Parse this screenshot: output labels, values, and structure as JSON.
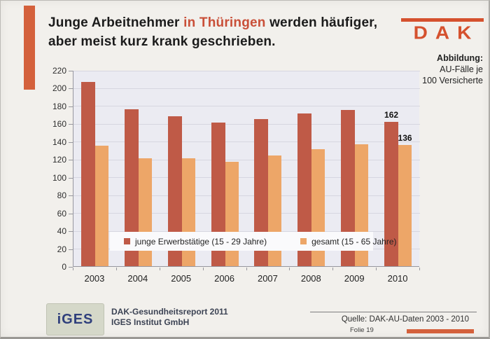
{
  "slide": {
    "title": {
      "pre": "Junge Arbeitnehmer",
      "highlight": "in Thüringen",
      "post": "werden häufiger,",
      "line2": "aber meist kurz krank geschrieben."
    },
    "logo": {
      "text": "DAK"
    },
    "figure_note": {
      "label": "Abbildung:",
      "line1": "AU-Fälle je",
      "line2": "100 Versicherte"
    },
    "footer": {
      "iges_logo": "iGES",
      "report_line1": "DAK-Gesundheitsreport 2011",
      "report_line2": "IGES Institut GmbH",
      "source": "Quelle: DAK-AU-Daten 2003 - 2010",
      "slide_number": "Folie 19"
    },
    "colors": {
      "accent": "#d4613c",
      "title_highlight": "#c94f38",
      "dak_logo": "#d5512e",
      "plot_background": "#ebebf2",
      "series_dark": "#bf5a47",
      "series_light": "#eda668"
    }
  },
  "chart_data": {
    "type": "bar",
    "categories": [
      "2003",
      "2004",
      "2005",
      "2006",
      "2007",
      "2008",
      "2009",
      "2010"
    ],
    "series": [
      {
        "name": "junge Erwerbstätige (15 - 29 Jahre)",
        "color": "#bf5a47",
        "values": [
          207,
          176,
          168,
          161,
          165,
          171,
          175,
          162
        ]
      },
      {
        "name": "gesamt (15 - 65 Jahre)",
        "color": "#eda668",
        "values": [
          135,
          121,
          121,
          117,
          124,
          131,
          137,
          136
        ]
      }
    ],
    "ylim": [
      0,
      220
    ],
    "yticks": [
      0,
      20,
      40,
      60,
      80,
      100,
      120,
      140,
      160,
      180,
      200,
      220
    ],
    "grid": true,
    "legend_position": "inside-bottom",
    "data_labels": {
      "category": "2010",
      "values": [
        162,
        136
      ]
    },
    "title": "AU-Fälle je 100 Versicherte"
  }
}
